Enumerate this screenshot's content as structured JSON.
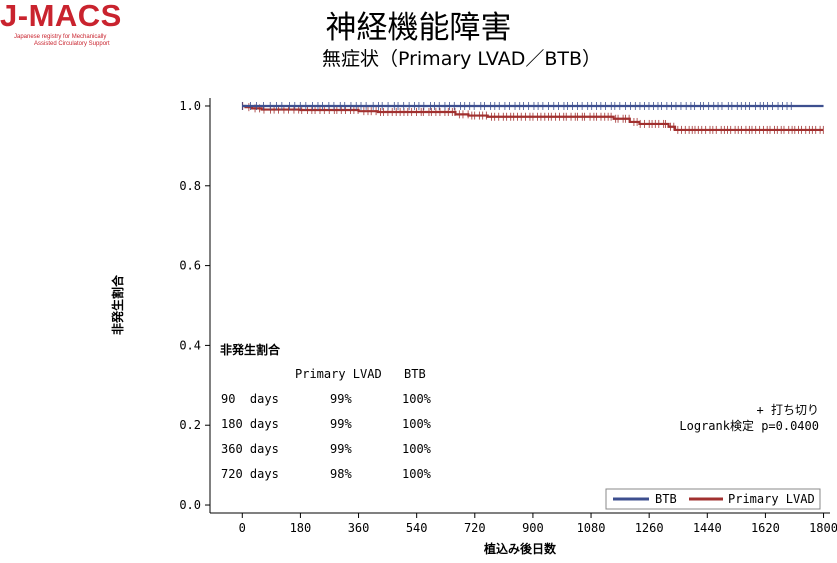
{
  "logo": {
    "text": "J-MACS",
    "line1": "Japanese registry for Mechanically",
    "line2": "Assisted Circulatory Support"
  },
  "header": {
    "title": "神経機能障害",
    "subtitle": "無症状（Primary LVAD／BTB）"
  },
  "colors": {
    "btb": "#3d4f8f",
    "lvad": "#a1302f"
  },
  "chart_data": {
    "type": "line",
    "subtype": "kaplan-meier",
    "xlabel": "植込み後日数",
    "ylabel": "非発生割合",
    "xlim": [
      -100,
      1820
    ],
    "ylim": [
      -0.02,
      1.02
    ],
    "xticks": [
      0,
      180,
      360,
      540,
      720,
      900,
      1080,
      1260,
      1440,
      1620,
      1800
    ],
    "yticks": [
      "1.0",
      "0.8",
      "0.6",
      "0.4",
      "0.2",
      "0.0"
    ],
    "series": [
      {
        "name": "BTB",
        "steps": [
          [
            0,
            1.0
          ],
          [
            1800,
            1.0
          ]
        ],
        "censor_range": [
          0,
          1700
        ],
        "censor_count": 110
      },
      {
        "name": "Primary LVAD",
        "steps": [
          [
            0,
            1.0
          ],
          [
            10,
            0.997
          ],
          [
            30,
            0.994
          ],
          [
            60,
            0.991
          ],
          [
            180,
            0.99
          ],
          [
            360,
            0.987
          ],
          [
            420,
            0.985
          ],
          [
            660,
            0.979
          ],
          [
            700,
            0.976
          ],
          [
            760,
            0.973
          ],
          [
            1150,
            0.968
          ],
          [
            1200,
            0.96
          ],
          [
            1230,
            0.955
          ],
          [
            1320,
            0.948
          ],
          [
            1340,
            0.94
          ],
          [
            1800,
            0.94
          ]
        ],
        "censor_range": [
          0,
          1800
        ],
        "censor_count": 150
      }
    ],
    "legend": {
      "entries": [
        "BTB",
        "Primary LVAD"
      ],
      "position": "bottom-right"
    },
    "annotation": {
      "censor": "+ 打ち切り",
      "logrank": "Logrank検定 p=0.0400"
    },
    "inset_table": {
      "title": "非発生割合",
      "headers": [
        "Primary LVAD",
        "BTB"
      ],
      "rows": [
        {
          "label": "90  days",
          "lvad": "99%",
          "btb": "100%"
        },
        {
          "label": "180 days",
          "lvad": "99%",
          "btb": "100%"
        },
        {
          "label": "360 days",
          "lvad": "99%",
          "btb": "100%"
        },
        {
          "label": "720 days",
          "lvad": "98%",
          "btb": "100%"
        }
      ]
    }
  }
}
